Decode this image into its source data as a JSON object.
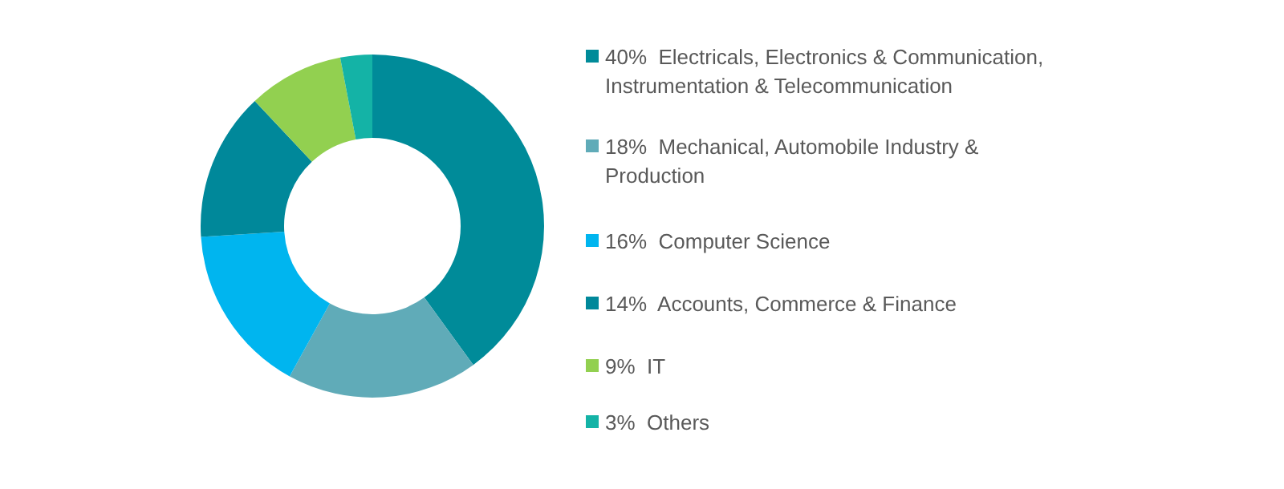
{
  "chart_data": {
    "type": "donut",
    "categories": [
      "40%  Electricals, Electronics & Communication,\nInstrumentation & Telecommunication",
      "18%  Mechanical, Automobile Industry &\nProduction",
      "16%  Computer Science",
      "14%  Accounts, Commerce & Finance",
      "9%  IT",
      "3%  Others"
    ],
    "values": [
      40,
      18,
      16,
      14,
      9,
      3
    ],
    "colors": [
      "#008b99",
      "#60abb8",
      "#00b5ef",
      "#00889a",
      "#92d050",
      "#14b3a6"
    ],
    "legend": "right"
  }
}
